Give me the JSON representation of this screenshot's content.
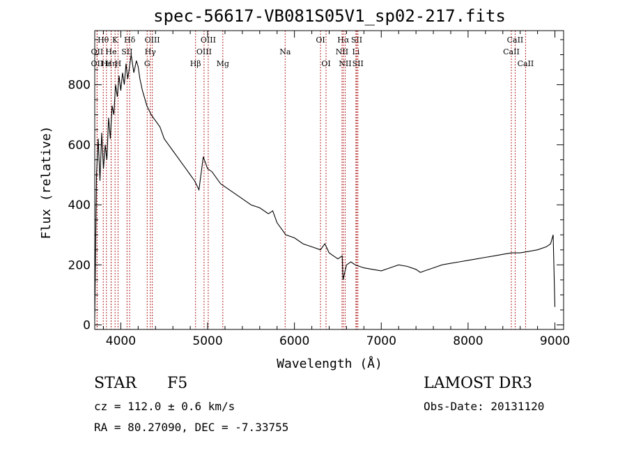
{
  "chart_data": {
    "type": "line",
    "title": "spec-56617-VB081S05V1_sp02-217.fits",
    "xlabel": "Wavelength (Å)",
    "ylabel": "Flux (relative)",
    "xlim": [
      3700,
      9100
    ],
    "ylim": [
      -15,
      980
    ],
    "xticks": [
      4000,
      5000,
      6000,
      7000,
      8000,
      9000
    ],
    "yticks": [
      0,
      200,
      400,
      600,
      800
    ],
    "series": [
      {
        "name": "spectrum",
        "x": [
          3700,
          3720,
          3740,
          3760,
          3780,
          3800,
          3820,
          3840,
          3860,
          3880,
          3900,
          3920,
          3940,
          3960,
          3980,
          4000,
          4020,
          4040,
          4060,
          4080,
          4100,
          4120,
          4150,
          4180,
          4200,
          4220,
          4250,
          4280,
          4300,
          4350,
          4400,
          4450,
          4500,
          4550,
          4600,
          4650,
          4700,
          4750,
          4800,
          4850,
          4900,
          4950,
          5000,
          5050,
          5100,
          5150,
          5200,
          5300,
          5400,
          5500,
          5600,
          5700,
          5750,
          5800,
          5850,
          5900,
          6000,
          6100,
          6200,
          6300,
          6350,
          6400,
          6450,
          6500,
          6550,
          6560,
          6600,
          6650,
          6700,
          6750,
          6800,
          6900,
          7000,
          7100,
          7200,
          7300,
          7400,
          7450,
          7500,
          7600,
          7700,
          7800,
          7900,
          8000,
          8100,
          8200,
          8300,
          8400,
          8500,
          8600,
          8700,
          8800,
          8900,
          8950,
          8980,
          9000
        ],
        "y": [
          20,
          500,
          620,
          480,
          640,
          520,
          600,
          550,
          690,
          620,
          730,
          700,
          800,
          760,
          830,
          780,
          840,
          800,
          870,
          820,
          860,
          900,
          840,
          880,
          860,
          820,
          780,
          750,
          730,
          700,
          680,
          660,
          620,
          600,
          580,
          560,
          540,
          520,
          500,
          480,
          450,
          560,
          520,
          510,
          490,
          470,
          460,
          440,
          420,
          400,
          390,
          370,
          380,
          340,
          320,
          300,
          290,
          270,
          260,
          250,
          270,
          240,
          230,
          220,
          230,
          150,
          200,
          210,
          200,
          195,
          190,
          185,
          180,
          190,
          200,
          195,
          185,
          175,
          180,
          190,
          200,
          205,
          210,
          215,
          220,
          225,
          230,
          235,
          240,
          240,
          245,
          250,
          260,
          270,
          300,
          60
        ],
        "color": "#000000"
      }
    ],
    "lines": [
      {
        "label": "Hθ",
        "wave": 3798,
        "row": 0
      },
      {
        "label": "OII",
        "wave": 3727,
        "row": 1
      },
      {
        "label": "OII",
        "wave": 3727,
        "row": 2
      },
      {
        "label": "Hε",
        "wave": 3835,
        "row": 2
      },
      {
        "label": "Hη",
        "wave": 3889,
        "row": 2
      },
      {
        "label": "K",
        "wave": 3934,
        "row": 0
      },
      {
        "label": "He",
        "wave": 3888,
        "row": 1
      },
      {
        "label": "H",
        "wave": 3968,
        "row": 2
      },
      {
        "label": "SII",
        "wave": 4072,
        "row": 1
      },
      {
        "label": "Hδ",
        "wave": 4102,
        "row": 0
      },
      {
        "label": "OIII",
        "wave": 4363,
        "row": 0
      },
      {
        "label": "Hγ",
        "wave": 4340,
        "row": 1
      },
      {
        "label": "G",
        "wave": 4304,
        "row": 2
      },
      {
        "label": "OIII",
        "wave": 5007,
        "row": 0
      },
      {
        "label": "OIII",
        "wave": 4959,
        "row": 1
      },
      {
        "label": "Hβ",
        "wave": 4861,
        "row": 2
      },
      {
        "label": "Mg",
        "wave": 5175,
        "row": 2
      },
      {
        "label": "Na",
        "wave": 5893,
        "row": 1
      },
      {
        "label": "OI",
        "wave": 6300,
        "row": 0
      },
      {
        "label": "OI",
        "wave": 6364,
        "row": 2
      },
      {
        "label": "Hα",
        "wave": 6563,
        "row": 0
      },
      {
        "label": "SII",
        "wave": 6717,
        "row": 0
      },
      {
        "label": "NII",
        "wave": 6548,
        "row": 1
      },
      {
        "label": "Li",
        "wave": 6708,
        "row": 1
      },
      {
        "label": "NII",
        "wave": 6584,
        "row": 2
      },
      {
        "label": "SII",
        "wave": 6731,
        "row": 2
      },
      {
        "label": "CaII",
        "wave": 8542,
        "row": 0
      },
      {
        "label": "CaII",
        "wave": 8498,
        "row": 1
      },
      {
        "label": "CaII",
        "wave": 8662,
        "row": 2
      }
    ]
  },
  "info": {
    "object": "STAR",
    "subclass": "F5",
    "survey": "LAMOST DR3",
    "cz": "cz = 112.0 ± 0.6 km/s",
    "obs_date": "Obs-Date: 20131120",
    "coords": "RA =  80.27090, DEC =  -7.33755"
  }
}
